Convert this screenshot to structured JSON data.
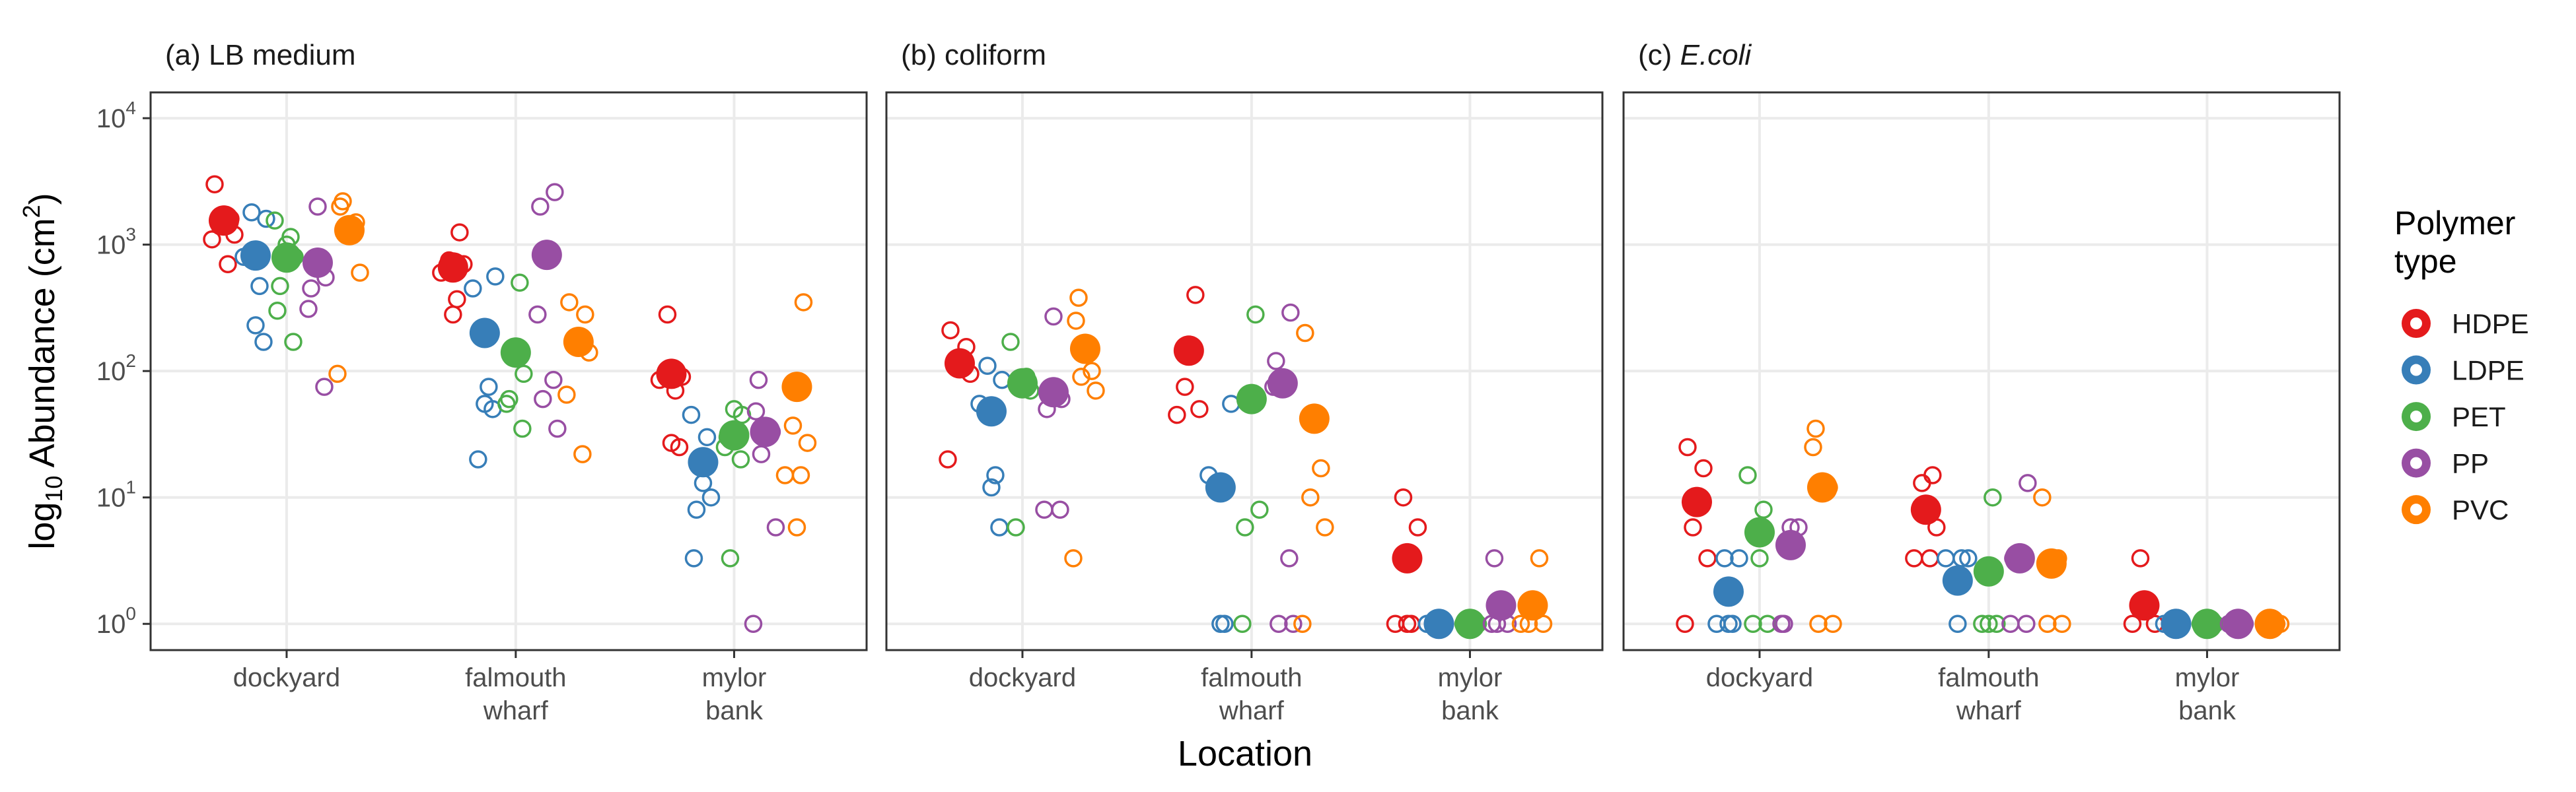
{
  "chart_data": {
    "type": "scatter",
    "y_scale": "log10",
    "ylim": [
      0.62,
      16000
    ],
    "yticks": [
      {
        "value": 1,
        "base": "10",
        "exp": "0"
      },
      {
        "value": 10,
        "base": "10",
        "exp": "1"
      },
      {
        "value": 100,
        "base": "10",
        "exp": "2"
      },
      {
        "value": 1000,
        "base": "10",
        "exp": "3"
      },
      {
        "value": 10000,
        "base": "10",
        "exp": "4"
      }
    ],
    "ylabel": {
      "pre": "log",
      "sub": "10",
      "mid": " Abundance (cm",
      "sup": "2",
      "post": ")"
    },
    "xlabel": "Location",
    "categories": [
      {
        "lines": [
          "dockyard"
        ]
      },
      {
        "lines": [
          "falmouth",
          "wharf"
        ]
      },
      {
        "lines": [
          "mylor",
          "bank"
        ]
      }
    ],
    "grid": true,
    "legend": {
      "title_lines": [
        "Polymer",
        "type"
      ],
      "position": "right",
      "series": [
        {
          "name": "HDPE",
          "color": "#e41a1c"
        },
        {
          "name": "LDPE",
          "color": "#377eb8"
        },
        {
          "name": "PET",
          "color": "#4daf4a"
        },
        {
          "name": "PP",
          "color": "#984ea3"
        },
        {
          "name": "PVC",
          "color": "#ff7f00"
        }
      ]
    },
    "panels": [
      {
        "tag": "(a)",
        "title": "LB medium",
        "italic": false,
        "groups": [
          {
            "location": 0,
            "series": 0,
            "mean": 1550,
            "points": [
              3000,
              1600,
              1400,
              1200,
              1100,
              700,
              1500
            ]
          },
          {
            "location": 0,
            "series": 1,
            "mean": 820,
            "points": [
              1800,
              1600,
              800,
              470,
              230,
              170
            ]
          },
          {
            "location": 0,
            "series": 2,
            "mean": 790,
            "points": [
              1550,
              1150,
              1000,
              800,
              470,
              300,
              170
            ]
          },
          {
            "location": 0,
            "series": 3,
            "mean": 720,
            "points": [
              2000,
              550,
              450,
              310,
              75,
              700
            ]
          },
          {
            "location": 0,
            "series": 4,
            "mean": 1300,
            "points": [
              2200,
              2000,
              1500,
              1300,
              600,
              95
            ]
          },
          {
            "location": 1,
            "series": 0,
            "mean": 660,
            "points": [
              1250,
              750,
              700,
              600,
              370,
              280
            ]
          },
          {
            "location": 1,
            "series": 1,
            "mean": 200,
            "points": [
              560,
              450,
              75,
              55,
              50,
              20
            ]
          },
          {
            "location": 1,
            "series": 2,
            "mean": 140,
            "points": [
              500,
              130,
              95,
              60,
              55,
              35
            ]
          },
          {
            "location": 1,
            "series": 3,
            "mean": 830,
            "points": [
              2600,
              2000,
              280,
              85,
              60,
              35
            ]
          },
          {
            "location": 1,
            "series": 4,
            "mean": 170,
            "points": [
              350,
              280,
              170,
              140,
              65,
              22
            ]
          },
          {
            "location": 2,
            "series": 0,
            "mean": 95,
            "points": [
              280,
              90,
              85,
              70,
              27,
              25
            ]
          },
          {
            "location": 2,
            "series": 1,
            "mean": 19,
            "points": [
              45,
              30,
              13,
              10,
              8,
              3.3
            ]
          },
          {
            "location": 2,
            "series": 2,
            "mean": 31,
            "points": [
              50,
              45,
              30,
              25,
              20,
              3.3
            ]
          },
          {
            "location": 2,
            "series": 3,
            "mean": 33,
            "points": [
              85,
              48,
              33,
              22,
              5.8,
              1
            ]
          },
          {
            "location": 2,
            "series": 4,
            "mean": 75,
            "points": [
              350,
              37,
              27,
              15,
              15,
              5.8
            ]
          }
        ]
      },
      {
        "tag": "(b)",
        "title": "coliform",
        "italic": false,
        "groups": [
          {
            "location": 0,
            "series": 0,
            "mean": 115,
            "points": [
              210,
              155,
              120,
              95,
              20
            ]
          },
          {
            "location": 0,
            "series": 1,
            "mean": 48,
            "points": [
              110,
              85,
              55,
              15,
              12,
              5.8
            ]
          },
          {
            "location": 0,
            "series": 2,
            "mean": 80,
            "points": [
              170,
              90,
              75,
              70,
              5.8
            ]
          },
          {
            "location": 0,
            "series": 3,
            "mean": 68,
            "points": [
              270,
              60,
              50,
              8,
              8
            ]
          },
          {
            "location": 0,
            "series": 4,
            "mean": 150,
            "points": [
              380,
              250,
              100,
              90,
              70,
              3.3
            ]
          },
          {
            "location": 1,
            "series": 0,
            "mean": 145,
            "points": [
              400,
              75,
              50,
              45
            ]
          },
          {
            "location": 1,
            "series": 1,
            "mean": 12,
            "points": [
              55,
              15,
              1,
              1
            ]
          },
          {
            "location": 1,
            "series": 2,
            "mean": 60,
            "points": [
              280,
              60,
              8,
              5.8,
              1
            ]
          },
          {
            "location": 1,
            "series": 3,
            "mean": 80,
            "points": [
              290,
              120,
              75,
              3.3,
              1,
              1
            ]
          },
          {
            "location": 1,
            "series": 4,
            "mean": 42,
            "points": [
              200,
              17,
              10,
              5.8,
              1
            ]
          },
          {
            "location": 2,
            "series": 0,
            "mean": 3.3,
            "points": [
              10,
              5.8,
              1,
              1,
              1
            ]
          },
          {
            "location": 2,
            "series": 1,
            "mean": 1,
            "points": [
              1,
              1,
              1
            ]
          },
          {
            "location": 2,
            "series": 2,
            "mean": 1,
            "points": [
              1,
              1,
              1
            ]
          },
          {
            "location": 2,
            "series": 3,
            "mean": 1.4,
            "points": [
              3.3,
              1,
              1,
              1
            ]
          },
          {
            "location": 2,
            "series": 4,
            "mean": 1.4,
            "points": [
              3.3,
              1,
              1,
              1
            ]
          }
        ]
      },
      {
        "tag": "(c)",
        "title": "E.coli",
        "italic": true,
        "groups": [
          {
            "location": 0,
            "series": 0,
            "mean": 9.2,
            "points": [
              25,
              17,
              5.8,
              3.3,
              1
            ]
          },
          {
            "location": 0,
            "series": 1,
            "mean": 1.8,
            "points": [
              3.3,
              3.3,
              1,
              1,
              1
            ]
          },
          {
            "location": 0,
            "series": 2,
            "mean": 5.3,
            "points": [
              15,
              8,
              3.3,
              1,
              1
            ]
          },
          {
            "location": 0,
            "series": 3,
            "mean": 4.2,
            "points": [
              5.8,
              5.8,
              1,
              1
            ]
          },
          {
            "location": 0,
            "series": 4,
            "mean": 12,
            "points": [
              35,
              25,
              12,
              1,
              1
            ]
          },
          {
            "location": 1,
            "series": 0,
            "mean": 8,
            "points": [
              15,
              13,
              5.8,
              3.3,
              3.3
            ]
          },
          {
            "location": 1,
            "series": 1,
            "mean": 2.2,
            "points": [
              3.3,
              3.3,
              3.3,
              1
            ]
          },
          {
            "location": 1,
            "series": 2,
            "mean": 2.6,
            "points": [
              10,
              1,
              1,
              1
            ]
          },
          {
            "location": 1,
            "series": 3,
            "mean": 3.3,
            "points": [
              13,
              3.3,
              1,
              1
            ]
          },
          {
            "location": 1,
            "series": 4,
            "mean": 3,
            "points": [
              10,
              3.3,
              1,
              1
            ]
          },
          {
            "location": 2,
            "series": 0,
            "mean": 1.4,
            "points": [
              3.3,
              1,
              1
            ]
          },
          {
            "location": 2,
            "series": 1,
            "mean": 1,
            "points": [
              1,
              1,
              1
            ]
          },
          {
            "location": 2,
            "series": 2,
            "mean": 1,
            "points": [
              1,
              1,
              1
            ]
          },
          {
            "location": 2,
            "series": 3,
            "mean": 1,
            "points": [
              1,
              1,
              1
            ]
          },
          {
            "location": 2,
            "series": 4,
            "mean": 1,
            "points": [
              1,
              1,
              1
            ]
          }
        ]
      }
    ]
  }
}
